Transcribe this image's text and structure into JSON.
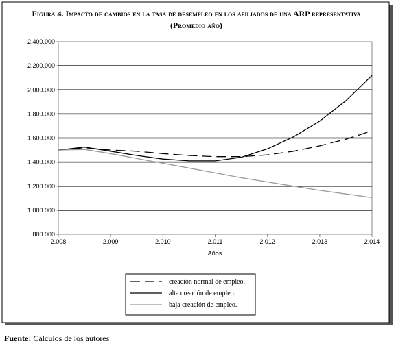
{
  "chart_data": {
    "type": "line",
    "title": "Figura 4. Impacto de cambios en la tasa de desempleo en los afiliados de una ARP representativa",
    "subtitle": "(Promedio año)",
    "x_label": "Años",
    "x": [
      2008,
      2008.5,
      2009,
      2009.5,
      2010,
      2010.5,
      2011,
      2011.5,
      2012,
      2012.5,
      2013,
      2013.5,
      2014
    ],
    "series": [
      {
        "name": "creación normal de empleo.",
        "color": "#000000",
        "dash": "14,7",
        "values": [
          1500000,
          1520000,
          1500000,
          1490000,
          1470000,
          1455000,
          1445000,
          1445000,
          1460000,
          1490000,
          1535000,
          1590000,
          1660000
        ]
      },
      {
        "name": "alta creación de empleo.",
        "color": "#000000",
        "dash": "none",
        "values": [
          1500000,
          1525000,
          1490000,
          1455000,
          1425000,
          1410000,
          1410000,
          1440000,
          1510000,
          1610000,
          1740000,
          1910000,
          2120000
        ]
      },
      {
        "name": "baja creación de empleo.",
        "color": "#999999",
        "dash": "none",
        "values": [
          1500000,
          1505000,
          1470000,
          1430000,
          1390000,
          1350000,
          1310000,
          1270000,
          1235000,
          1200000,
          1165000,
          1135000,
          1105000
        ]
      }
    ],
    "xlim": [
      2008,
      2014
    ],
    "xticks": [
      {
        "value": 2008,
        "label": "2.008"
      },
      {
        "value": 2009,
        "label": "2.009"
      },
      {
        "value": 2010,
        "label": "2.010"
      },
      {
        "value": 2011,
        "label": "2.011"
      },
      {
        "value": 2012,
        "label": "2.012"
      },
      {
        "value": 2013,
        "label": "2.013"
      },
      {
        "value": 2014,
        "label": "2.014"
      }
    ],
    "ylim": [
      800000,
      2400000
    ],
    "yticks": [
      {
        "value": 800000,
        "label": "800.000"
      },
      {
        "value": 1000000,
        "label": "1.000.000"
      },
      {
        "value": 1200000,
        "label": "1.200.000"
      },
      {
        "value": 1400000,
        "label": "1.400.000"
      },
      {
        "value": 1600000,
        "label": "1.600.000"
      },
      {
        "value": 1800000,
        "label": "1.800.000"
      },
      {
        "value": 2000000,
        "label": "2.000.000"
      },
      {
        "value": 2200000,
        "label": "2.200.000"
      },
      {
        "value": 2400000,
        "label": "2.400.000"
      }
    ],
    "grid": true,
    "source_label": "Fuente:",
    "source": "Cálculos de los autores"
  }
}
